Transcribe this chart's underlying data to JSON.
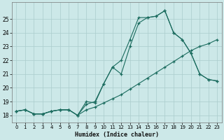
{
  "xlabel": "Humidex (Indice chaleur)",
  "xlim": [
    -0.5,
    23.5
  ],
  "ylim": [
    17.5,
    26.2
  ],
  "yticks": [
    18,
    19,
    20,
    21,
    22,
    23,
    24,
    25
  ],
  "xticks": [
    0,
    1,
    2,
    3,
    4,
    5,
    6,
    7,
    8,
    9,
    10,
    11,
    12,
    13,
    14,
    15,
    16,
    17,
    18,
    19,
    20,
    21,
    22,
    23
  ],
  "bg_color": "#cce8e8",
  "grid_color": "#aacccc",
  "line_color": "#1a6b5e",
  "line1_x": [
    0,
    1,
    2,
    3,
    4,
    5,
    6,
    7,
    8,
    9,
    10,
    11,
    12,
    13,
    14,
    15,
    16,
    17,
    18,
    19,
    20,
    21,
    22,
    23
  ],
  "line1_y": [
    18.3,
    18.4,
    18.1,
    18.1,
    18.3,
    18.4,
    18.4,
    18.0,
    19.0,
    18.9,
    20.3,
    21.5,
    21.0,
    23.0,
    24.7,
    25.1,
    25.2,
    25.6,
    24.0,
    23.5,
    22.5,
    21.0,
    20.6,
    20.5
  ],
  "line2_x": [
    0,
    1,
    2,
    3,
    4,
    5,
    6,
    7,
    8,
    9,
    10,
    11,
    12,
    13,
    14,
    15,
    16,
    17,
    18,
    19,
    20,
    21,
    22,
    23
  ],
  "line2_y": [
    18.3,
    18.4,
    18.1,
    18.1,
    18.3,
    18.4,
    18.4,
    18.0,
    18.4,
    18.6,
    18.9,
    19.2,
    19.5,
    19.9,
    20.3,
    20.7,
    21.1,
    21.5,
    21.9,
    22.3,
    22.7,
    23.0,
    23.2,
    23.5
  ],
  "line3_x": [
    0,
    1,
    2,
    3,
    4,
    5,
    6,
    7,
    8,
    9,
    10,
    11,
    12,
    13,
    14,
    15,
    16,
    17,
    18,
    19,
    20,
    21,
    22,
    23
  ],
  "line3_y": [
    18.3,
    18.4,
    18.1,
    18.1,
    18.3,
    18.4,
    18.4,
    18.0,
    18.8,
    19.0,
    20.3,
    21.5,
    22.0,
    23.5,
    25.1,
    25.1,
    25.2,
    25.6,
    24.0,
    23.5,
    22.5,
    21.0,
    20.6,
    20.5
  ]
}
